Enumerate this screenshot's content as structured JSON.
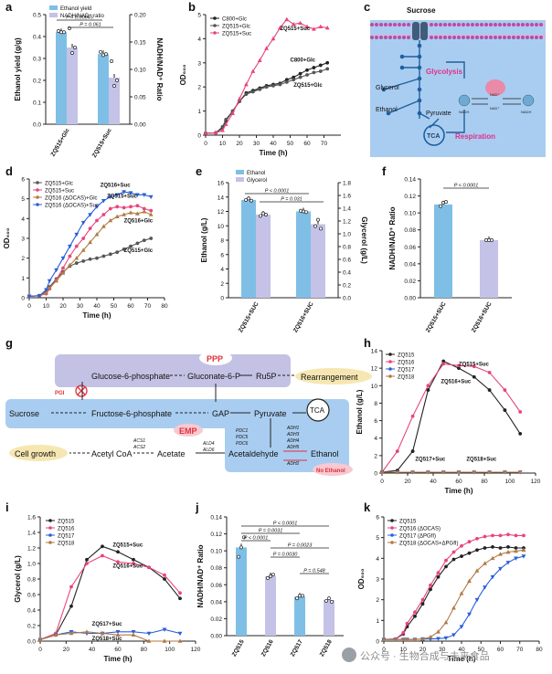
{
  "figure": {
    "watermark": "公众号 · 生物合成与未来食品",
    "panel_labels": [
      "a",
      "b",
      "c",
      "d",
      "e",
      "f",
      "g",
      "h",
      "i",
      "j",
      "k"
    ]
  },
  "colors": {
    "blue": "#7fbfe6",
    "lavender": "#c4c2e6",
    "black": "#222222",
    "pink": "#e8457a",
    "mauve": "#b85a8a",
    "darkgray": "#555555",
    "royal": "#2a5fd8",
    "brown": "#b07a45",
    "membrane": "#b24fa8",
    "bluebox": "#a9cdf0",
    "purplebox": "#c3c2e4",
    "yellowbox": "#f6e7b2",
    "pinkbox": "#f7c9d2",
    "red": "#e0303a"
  },
  "chart_data": [
    {
      "id": "a",
      "type": "bar",
      "legend": [
        "Ethanol yield",
        "NADH/NAD⁺ ratio"
      ],
      "categories": [
        "ZQ515+Glc",
        "ZQ515+Suc"
      ],
      "series": [
        {
          "name": "Ethanol yield",
          "axis": "left",
          "values": [
            0.42,
            0.32
          ],
          "points": [
            [
              0.425,
              0.42,
              0.42
            ],
            [
              0.33,
              0.315,
              0.32
            ]
          ]
        },
        {
          "name": "NADH/NAD⁺ ratio",
          "axis": "right",
          "values": [
            0.14,
            0.085
          ],
          "points": [
            [
              0.175,
              0.13,
              0.14
            ],
            [
              0.115,
              0.07,
              0.08
            ]
          ]
        }
      ],
      "ylabel": "Ethanol yield (g/g)",
      "ylabel2": "NADH/NAD⁺ Ratio",
      "ylim": [
        0,
        0.5
      ],
      "ylim2": [
        0,
        0.2
      ],
      "yticks": [
        0.0,
        0.1,
        0.2,
        0.3,
        0.4,
        0.5
      ],
      "yticks2": [
        0.0,
        0.05,
        0.1,
        0.15,
        0.2
      ],
      "sig": [
        "P = 0.00045",
        "P = 0.061"
      ]
    },
    {
      "id": "b",
      "type": "line",
      "x": [
        0,
        6,
        10,
        12,
        16,
        20,
        24,
        28,
        32,
        36,
        40,
        44,
        48,
        52,
        56,
        60,
        64,
        68,
        72
      ],
      "series": [
        {
          "name": "C800+Glc",
          "values": [
            0.08,
            0.1,
            0.3,
            0.6,
            1.0,
            1.4,
            1.75,
            1.85,
            1.95,
            2.05,
            2.1,
            2.15,
            2.3,
            2.4,
            2.55,
            2.7,
            2.8,
            2.9,
            3.0
          ]
        },
        {
          "name": "ZQ515+Glc",
          "values": [
            0.08,
            0.1,
            0.35,
            0.65,
            1.0,
            1.4,
            1.7,
            1.8,
            1.9,
            2.0,
            2.05,
            2.1,
            2.2,
            2.3,
            2.4,
            2.5,
            2.6,
            2.65,
            2.75
          ]
        },
        {
          "name": "ZQ515+Suc",
          "values": [
            0.08,
            0.1,
            0.2,
            0.45,
            0.9,
            1.5,
            2.1,
            2.65,
            3.1,
            3.6,
            4.0,
            4.45,
            4.8,
            4.6,
            4.65,
            4.5,
            4.4,
            4.5,
            4.45
          ]
        }
      ],
      "labels": [
        "ZQ515+Suc",
        "C800+Glc",
        "ZQ515+Glc"
      ],
      "xlabel": "Time (h)",
      "ylabel": "OD₆₀₀",
      "xlim": [
        0,
        80
      ],
      "ylim": [
        0,
        5
      ],
      "xticks": [
        0,
        10,
        20,
        30,
        40,
        50,
        60,
        70
      ],
      "yticks": [
        0,
        1,
        2,
        3,
        4,
        5
      ]
    },
    {
      "id": "d",
      "type": "line",
      "x": [
        0,
        6,
        10,
        12,
        16,
        20,
        24,
        28,
        32,
        36,
        40,
        44,
        48,
        52,
        56,
        60,
        64,
        68,
        72
      ],
      "series": [
        {
          "name": "ZQ515+Glc",
          "values": [
            0.08,
            0.1,
            0.3,
            0.55,
            0.95,
            1.3,
            1.6,
            1.75,
            1.85,
            1.95,
            2.0,
            2.1,
            2.2,
            2.3,
            2.45,
            2.6,
            2.75,
            2.9,
            3.0
          ]
        },
        {
          "name": "ZQ515+Suc",
          "values": [
            0.08,
            0.1,
            0.2,
            0.45,
            0.9,
            1.5,
            2.1,
            2.6,
            3.0,
            3.5,
            3.9,
            4.2,
            4.5,
            4.6,
            4.55,
            4.6,
            4.65,
            4.5,
            4.4
          ]
        },
        {
          "name": "ZQ516 (ΔOCAS)+Glc",
          "values": [
            0.08,
            0.1,
            0.25,
            0.5,
            0.85,
            1.25,
            1.65,
            2.0,
            2.4,
            2.8,
            3.2,
            3.6,
            3.9,
            4.1,
            4.2,
            4.3,
            4.25,
            4.35,
            4.2
          ]
        },
        {
          "name": "ZQ516 (ΔOCAS)+Suc",
          "values": [
            0.08,
            0.1,
            0.4,
            0.85,
            1.4,
            2.0,
            2.6,
            3.2,
            3.8,
            4.2,
            4.6,
            4.9,
            5.1,
            5.2,
            5.35,
            5.3,
            5.2,
            5.2,
            5.1
          ]
        }
      ],
      "labels": [
        "ZQ516+Suc",
        "ZQ515+Suc",
        "ZQ516+Glc",
        "ZQ515+Glc"
      ],
      "xlabel": "Time (h)",
      "ylabel": "OD₆₀₀",
      "xlim": [
        0,
        80
      ],
      "ylim": [
        0,
        6
      ],
      "xticks": [
        0,
        10,
        20,
        30,
        40,
        50,
        60,
        70,
        80
      ],
      "yticks": [
        0,
        1,
        2,
        3,
        4,
        5,
        6
      ]
    },
    {
      "id": "e",
      "type": "bar",
      "legend": [
        "Ethanol",
        "Glycerol"
      ],
      "categories": [
        "ZQ515+SUC",
        "ZQ516+SUC"
      ],
      "series": [
        {
          "name": "Ethanol",
          "axis": "left",
          "values": [
            13.6,
            12.0
          ],
          "points": [
            [
              13.6,
              13.8,
              13.5
            ],
            [
              12.1,
              12.0,
              11.9
            ]
          ]
        },
        {
          "name": "Glycerol",
          "axis": "right",
          "values": [
            1.3,
            1.15
          ],
          "points": [
            [
              1.28,
              1.32,
              1.3
            ],
            [
              1.12,
              1.22,
              1.08
            ]
          ]
        }
      ],
      "ylabel": "Ethanol (g/L)",
      "ylabel2": "Glycerol (g/L)",
      "ylim": [
        0,
        16
      ],
      "ylim2": [
        0,
        1.8
      ],
      "yticks": [
        0,
        2,
        4,
        6,
        8,
        10,
        12,
        14,
        16
      ],
      "yticks2": [
        0.0,
        0.2,
        0.4,
        0.6,
        0.8,
        1.0,
        1.2,
        1.4,
        1.6,
        1.8
      ],
      "sig": [
        "P < 0.0001",
        "P = 0.031"
      ]
    },
    {
      "id": "f",
      "type": "bar",
      "categories": [
        "ZQ515+SUC",
        "ZQ516+SUC"
      ],
      "values": [
        0.11,
        0.068
      ],
      "points": [
        [
          0.108,
          0.112,
          0.113
        ],
        [
          0.068,
          0.068,
          0.068
        ]
      ],
      "ylabel": "NADH/NAD⁺ Ratio",
      "ylim": [
        0,
        0.14
      ],
      "yticks": [
        0.0,
        0.02,
        0.04,
        0.06,
        0.08,
        0.1,
        0.12,
        0.14
      ],
      "sig": [
        "P < 0.0001"
      ]
    },
    {
      "id": "h",
      "type": "line",
      "x": [
        0,
        12,
        24,
        36,
        48,
        60,
        72,
        84,
        96,
        108
      ],
      "series": [
        {
          "name": "ZQ515",
          "values": [
            0.1,
            0.3,
            2.5,
            9.5,
            12.8,
            12.0,
            11.0,
            9.5,
            7.2,
            4.5
          ]
        },
        {
          "name": "ZQ516",
          "values": [
            0.1,
            2.5,
            6.5,
            10.0,
            12.5,
            12.3,
            12.2,
            11.5,
            9.5,
            7.0
          ]
        },
        {
          "name": "ZQ517",
          "values": [
            0.1,
            0.1,
            0.1,
            0.1,
            0.1,
            0.1,
            0.1,
            0.1,
            0.1,
            0.1
          ]
        },
        {
          "name": "ZQ518",
          "values": [
            0.1,
            0.1,
            0.1,
            0.1,
            0.1,
            0.1,
            0.1,
            0.1,
            0.1,
            0.1
          ]
        }
      ],
      "labels": [
        "ZQ515+Suc",
        "ZQ516+Suc",
        "ZQ517+Suc",
        "ZQ518+Suc"
      ],
      "xlabel": "Time (h)",
      "ylabel": "Ethanol (g/L)",
      "xlim": [
        0,
        120
      ],
      "ylim": [
        0,
        14
      ],
      "xticks": [
        0,
        20,
        40,
        60,
        80,
        100,
        120
      ],
      "yticks": [
        0,
        2,
        4,
        6,
        8,
        10,
        12,
        14
      ]
    },
    {
      "id": "i",
      "type": "line",
      "x": [
        0,
        12,
        24,
        36,
        48,
        60,
        72,
        84,
        96,
        108
      ],
      "series": [
        {
          "name": "ZQ515",
          "values": [
            0.02,
            0.08,
            0.45,
            1.05,
            1.22,
            1.15,
            1.05,
            0.95,
            0.8,
            0.55
          ]
        },
        {
          "name": "ZQ516",
          "values": [
            0.02,
            0.1,
            0.7,
            1.0,
            1.1,
            1.02,
            1.0,
            0.95,
            0.85,
            0.62
          ]
        },
        {
          "name": "ZQ517",
          "values": [
            0.02,
            0.08,
            0.12,
            0.1,
            0.1,
            0.12,
            0.12,
            0.1,
            0.15,
            0.1
          ]
        },
        {
          "name": "ZQ518",
          "values": [
            0.02,
            0.08,
            0.1,
            0.12,
            0.1,
            0.08,
            0.08,
            0.0,
            0.0,
            0.0
          ]
        }
      ],
      "labels": [
        "ZQ515+Suc",
        "ZQ516+Suc",
        "ZQ517+Suc",
        "ZQ518+Suc"
      ],
      "xlabel": "Time (h)",
      "ylabel": "Glycerol (g/L)",
      "xlim": [
        0,
        120
      ],
      "ylim": [
        0,
        1.6
      ],
      "xticks": [
        0,
        20,
        40,
        60,
        80,
        100,
        120
      ],
      "yticks": [
        0.0,
        0.2,
        0.4,
        0.6,
        0.8,
        1.0,
        1.2,
        1.4,
        1.6
      ]
    },
    {
      "id": "j",
      "type": "bar",
      "categories": [
        "ZQ515",
        "ZQ516",
        "ZQ517",
        "ZQ518"
      ],
      "values": [
        0.104,
        0.07,
        0.046,
        0.042
      ],
      "points": [
        [
          0.093,
          0.104,
          0.116
        ],
        [
          0.068,
          0.07,
          0.072
        ],
        [
          0.044,
          0.047,
          0.047
        ],
        [
          0.041,
          0.044,
          0.04
        ]
      ],
      "ylabel": "NADH/NAD⁺ Ratio",
      "ylim": [
        0,
        0.14
      ],
      "yticks": [
        0.0,
        0.02,
        0.04,
        0.06,
        0.08,
        0.1,
        0.12,
        0.14
      ],
      "sig": [
        "P < 0.0001",
        "P = 0.0031",
        "P < 0.0001",
        "P = 0.0023",
        "P = 0.0030",
        "P = 0.548"
      ]
    },
    {
      "id": "k",
      "type": "line",
      "x": [
        0,
        6,
        10,
        12,
        16,
        20,
        24,
        28,
        32,
        36,
        40,
        44,
        48,
        52,
        56,
        60,
        64,
        68,
        72
      ],
      "series": [
        {
          "name": "ZQ515",
          "values": [
            0.08,
            0.1,
            0.35,
            0.7,
            1.2,
            1.8,
            2.5,
            3.1,
            3.6,
            3.95,
            4.1,
            4.25,
            4.4,
            4.5,
            4.55,
            4.5,
            4.55,
            4.5,
            4.5
          ]
        },
        {
          "name": "ZQ516 (ΔOCAS)",
          "values": [
            0.08,
            0.1,
            0.4,
            0.85,
            1.4,
            2.0,
            2.7,
            3.3,
            3.9,
            4.3,
            4.6,
            4.8,
            4.95,
            5.05,
            5.1,
            5.1,
            5.15,
            5.1,
            5.1
          ]
        },
        {
          "name": "ZQ517 (ΔPGfI)",
          "values": [
            0.08,
            0.08,
            0.08,
            0.08,
            0.08,
            0.1,
            0.1,
            0.12,
            0.15,
            0.3,
            0.7,
            1.3,
            2.0,
            2.6,
            3.1,
            3.5,
            3.8,
            4.0,
            4.1
          ]
        },
        {
          "name": "ZQ518 (ΔOCAS+ΔPGfI)",
          "values": [
            0.08,
            0.08,
            0.08,
            0.08,
            0.08,
            0.1,
            0.2,
            0.45,
            0.9,
            1.6,
            2.3,
            2.9,
            3.4,
            3.75,
            4.0,
            4.2,
            4.3,
            4.35,
            4.4
          ]
        }
      ],
      "xlabel": "Time (h)",
      "ylabel": "OD₆₀₀",
      "xlim": [
        0,
        80
      ],
      "ylim": [
        0,
        6
      ],
      "xticks": [
        0,
        10,
        20,
        30,
        40,
        50,
        60,
        70,
        80
      ],
      "yticks": [
        0,
        1,
        2,
        3,
        4,
        5,
        6
      ]
    }
  ],
  "diagram_c": {
    "labels": [
      "Sucrose",
      "Glycerol",
      "Ethanol",
      "Pyruvate",
      "TCA",
      "Glycolysis",
      "Respiration",
      "NADH",
      "NAD⁺",
      "NADH",
      "NAD⁺"
    ]
  },
  "diagram_g": {
    "ppp_label": "PPP",
    "nodes": [
      "Glucose-6-phosphate",
      "Gluconate-6-P",
      "Ru5P",
      "Rearrangement",
      "Sucrose",
      "Fructose-6-phosphate",
      "GAP",
      "Pyruvate",
      "TCA",
      "Acetaldehyde",
      "Ethanol",
      "Acetate",
      "Acetyl CoA",
      "Cell growth"
    ],
    "pgi_label": "PGI",
    "emp_label": "EMP",
    "no_ethanol": "No Ethanol",
    "pdc_genes": [
      "PDC1",
      "PDC5",
      "PDC6"
    ],
    "adh_genes": [
      "ADH1",
      "ADH3",
      "ADH4",
      "ADH5",
      "ADH2"
    ],
    "acs_genes": [
      "ACS1",
      "ACS2"
    ],
    "ald_genes": [
      "ALD4",
      "ALD6"
    ]
  }
}
